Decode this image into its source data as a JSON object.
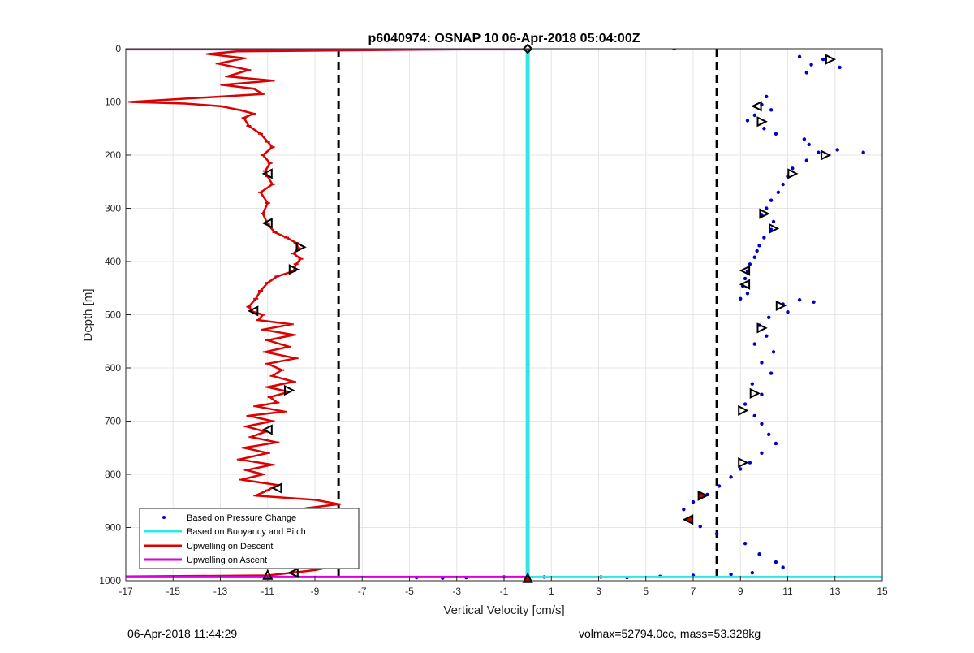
{
  "footer": {
    "timestamp": "06-Apr-2018 11:44:29",
    "summary": "volmax=52794.0cc, mass=53.328kg"
  },
  "chart_data": {
    "type": "scatter",
    "title": "p6040974: OSNAP 10 06-Apr-2018 05:04:00Z",
    "xlabel": "Vertical Velocity [cm/s]",
    "ylabel": "Depth [m]",
    "xlim": [
      -17,
      15
    ],
    "ylim": [
      0,
      1000
    ],
    "y_reversed": true,
    "grid": true,
    "xticks": [
      -17,
      -15,
      -13,
      -11,
      -9,
      -7,
      -5,
      -3,
      -1,
      1,
      3,
      5,
      7,
      9,
      11,
      13,
      15
    ],
    "yticks": [
      0,
      100,
      200,
      300,
      400,
      500,
      600,
      700,
      800,
      900,
      1000
    ],
    "legend": {
      "placement": "bottom-left",
      "entries": [
        "Based on Pressure Change",
        "Based on Buoyancy and Pitch",
        "Upwelling on Descent",
        "Upwelling on Ascent"
      ]
    },
    "reference_lines_x": [
      -8,
      8
    ],
    "colors": {
      "pressure": "#0000cc",
      "buoyancy": "#33e6e6",
      "descent": "#dd0000",
      "ascent": "#dd00dd",
      "reference": "#000000"
    },
    "series": [
      {
        "key": "pressure",
        "kind": "scatter",
        "points": [
          [
            6.2,
            0
          ],
          [
            12.5,
            20
          ],
          [
            13.2,
            35
          ],
          [
            11.8,
            45
          ],
          [
            12.0,
            30
          ],
          [
            11.5,
            15
          ],
          [
            10.1,
            90
          ],
          [
            9.9,
            105
          ],
          [
            10.3,
            115
          ],
          [
            9.6,
            125
          ],
          [
            9.3,
            135
          ],
          [
            10.0,
            150
          ],
          [
            10.5,
            160
          ],
          [
            11.7,
            170
          ],
          [
            11.9,
            180
          ],
          [
            12.3,
            195
          ],
          [
            13.1,
            190
          ],
          [
            14.2,
            195
          ],
          [
            11.8,
            210
          ],
          [
            11.2,
            225
          ],
          [
            11.0,
            240
          ],
          [
            10.8,
            255
          ],
          [
            10.6,
            270
          ],
          [
            10.3,
            285
          ],
          [
            10.1,
            300
          ],
          [
            9.9,
            312
          ],
          [
            10.4,
            325
          ],
          [
            10.3,
            340
          ],
          [
            10.0,
            355
          ],
          [
            9.8,
            370
          ],
          [
            9.7,
            380
          ],
          [
            9.6,
            392
          ],
          [
            9.4,
            405
          ],
          [
            9.3,
            418
          ],
          [
            9.2,
            432
          ],
          [
            9.1,
            446
          ],
          [
            9.3,
            460
          ],
          [
            9.0,
            470
          ],
          [
            10.8,
            480
          ],
          [
            11.5,
            472
          ],
          [
            12.1,
            476
          ],
          [
            11.0,
            495
          ],
          [
            10.2,
            505
          ],
          [
            9.8,
            520
          ],
          [
            10.1,
            540
          ],
          [
            9.6,
            555
          ],
          [
            10.4,
            570
          ],
          [
            9.9,
            590
          ],
          [
            10.3,
            610
          ],
          [
            9.5,
            630
          ],
          [
            9.9,
            650
          ],
          [
            9.2,
            668
          ],
          [
            9.6,
            690
          ],
          [
            9.9,
            705
          ],
          [
            10.2,
            725
          ],
          [
            10.5,
            742
          ],
          [
            9.9,
            760
          ],
          [
            9.4,
            778
          ],
          [
            9.0,
            790
          ],
          [
            8.6,
            805
          ],
          [
            8.1,
            822
          ],
          [
            7.6,
            838
          ],
          [
            7.0,
            852
          ],
          [
            6.6,
            866
          ],
          [
            6.8,
            884
          ],
          [
            7.3,
            898
          ],
          [
            8.0,
            912
          ],
          [
            9.2,
            930
          ],
          [
            9.8,
            950
          ],
          [
            10.5,
            965
          ],
          [
            10.8,
            975
          ],
          [
            9.5,
            985
          ],
          [
            8.6,
            988
          ],
          [
            7.0,
            990
          ],
          [
            5.6,
            992
          ],
          [
            4.2,
            994
          ],
          [
            3.1,
            993
          ],
          [
            0.7,
            993
          ],
          [
            -1.0,
            993
          ],
          [
            -2.6,
            994
          ],
          [
            -3.6,
            995
          ],
          [
            -4.7,
            994
          ]
        ]
      },
      {
        "key": "buoyancy",
        "kind": "vertical",
        "x": 0,
        "depth_range": [
          0,
          992
        ],
        "bottom_line": {
          "y": 993,
          "x_range": [
            0,
            15
          ]
        }
      },
      {
        "key": "descent",
        "kind": "line",
        "points": [
          [
            0,
            0
          ],
          [
            -12.3,
            5
          ],
          [
            -13.5,
            10
          ],
          [
            -12.0,
            18
          ],
          [
            -13.1,
            28
          ],
          [
            -11.8,
            40
          ],
          [
            -12.7,
            52
          ],
          [
            -10.8,
            60
          ],
          [
            -12.9,
            68
          ],
          [
            -11.6,
            75
          ],
          [
            -11.2,
            85
          ],
          [
            -13.8,
            92
          ],
          [
            -16.8,
            100
          ],
          [
            -14.5,
            103
          ],
          [
            -13.0,
            108
          ],
          [
            -12.2,
            115
          ],
          [
            -11.6,
            122
          ],
          [
            -12.0,
            130
          ],
          [
            -11.8,
            145
          ],
          [
            -11.3,
            160
          ],
          [
            -11.0,
            175
          ],
          [
            -10.8,
            185
          ],
          [
            -11.2,
            200
          ],
          [
            -10.9,
            215
          ],
          [
            -11.1,
            230
          ],
          [
            -11.0,
            240
          ],
          [
            -10.8,
            255
          ],
          [
            -11.3,
            270
          ],
          [
            -11.0,
            290
          ],
          [
            -11.2,
            310
          ],
          [
            -11.0,
            330
          ],
          [
            -10.7,
            345
          ],
          [
            -10.2,
            355
          ],
          [
            -9.8,
            365
          ],
          [
            -9.7,
            375
          ],
          [
            -9.9,
            385
          ],
          [
            -9.6,
            395
          ],
          [
            -9.8,
            405
          ],
          [
            -9.9,
            418
          ],
          [
            -10.6,
            428
          ],
          [
            -11.0,
            440
          ],
          [
            -11.3,
            455
          ],
          [
            -11.5,
            470
          ],
          [
            -11.8,
            485
          ],
          [
            -11.6,
            495
          ],
          [
            -11.2,
            500
          ],
          [
            -11.4,
            510
          ],
          [
            -10.0,
            518
          ],
          [
            -11.2,
            528
          ],
          [
            -9.9,
            538
          ],
          [
            -11.0,
            548
          ],
          [
            -10.1,
            560
          ],
          [
            -11.1,
            570
          ],
          [
            -9.8,
            582
          ],
          [
            -11.0,
            592
          ],
          [
            -10.4,
            604
          ],
          [
            -10.8,
            615
          ],
          [
            -9.9,
            626
          ],
          [
            -11.0,
            636
          ],
          [
            -10.1,
            645
          ],
          [
            -10.9,
            655
          ],
          [
            -10.6,
            665
          ],
          [
            -11.5,
            672
          ],
          [
            -10.3,
            682
          ],
          [
            -11.8,
            690
          ],
          [
            -10.8,
            700
          ],
          [
            -11.9,
            710
          ],
          [
            -11.1,
            720
          ],
          [
            -11.7,
            730
          ],
          [
            -10.6,
            740
          ],
          [
            -12.0,
            750
          ],
          [
            -11.0,
            760
          ],
          [
            -12.2,
            772
          ],
          [
            -10.8,
            782
          ],
          [
            -11.9,
            792
          ],
          [
            -11.2,
            800
          ],
          [
            -12.1,
            810
          ],
          [
            -10.6,
            820
          ],
          [
            -11.0,
            830
          ],
          [
            -11.5,
            840
          ],
          [
            -9.0,
            848
          ],
          [
            -8.0,
            856
          ],
          [
            -9.4,
            864
          ],
          [
            -7.6,
            874
          ],
          [
            -9.1,
            884
          ],
          [
            -7.8,
            894
          ],
          [
            -8.6,
            904
          ],
          [
            -9.4,
            912
          ],
          [
            -7.8,
            920
          ],
          [
            -8.8,
            930
          ],
          [
            -9.4,
            940
          ],
          [
            -7.9,
            950
          ],
          [
            -9.2,
            960
          ],
          [
            -8.1,
            972
          ],
          [
            -9.0,
            980
          ],
          [
            -10.0,
            985
          ],
          [
            -11.0,
            990
          ],
          [
            -17.0,
            992
          ]
        ]
      },
      {
        "key": "ascent",
        "kind": "line",
        "points": [
          [
            -17,
            993
          ],
          [
            0,
            993
          ],
          [
            -17,
            993
          ]
        ],
        "top_line": {
          "y": 1,
          "x_range": [
            -17,
            0
          ]
        }
      }
    ],
    "markers": [
      {
        "x": 12.8,
        "y": 20,
        "dir": "right"
      },
      {
        "x": 9.7,
        "y": 108,
        "dir": "left"
      },
      {
        "x": 9.9,
        "y": 137,
        "dir": "right"
      },
      {
        "x": 12.6,
        "y": 200,
        "dir": "right"
      },
      {
        "x": 11.2,
        "y": 235,
        "dir": "right"
      },
      {
        "x": 10.0,
        "y": 310,
        "dir": "right"
      },
      {
        "x": 10.4,
        "y": 338,
        "dir": "right"
      },
      {
        "x": 9.2,
        "y": 417,
        "dir": "left"
      },
      {
        "x": 9.2,
        "y": 443,
        "dir": "left"
      },
      {
        "x": 10.7,
        "y": 483,
        "dir": "right"
      },
      {
        "x": 9.9,
        "y": 525,
        "dir": "right"
      },
      {
        "x": 9.6,
        "y": 648,
        "dir": "right"
      },
      {
        "x": 9.1,
        "y": 680,
        "dir": "right"
      },
      {
        "x": 9.1,
        "y": 778,
        "dir": "right"
      },
      {
        "x": 7.4,
        "y": 840,
        "dir": "right",
        "filled": true
      },
      {
        "x": 6.8,
        "y": 885,
        "dir": "left",
        "filled": true
      },
      {
        "x": -11.0,
        "y": 235,
        "dir": "left"
      },
      {
        "x": -11.0,
        "y": 328,
        "dir": "left"
      },
      {
        "x": -9.6,
        "y": 373,
        "dir": "right"
      },
      {
        "x": -9.9,
        "y": 415,
        "dir": "right"
      },
      {
        "x": -11.6,
        "y": 493,
        "dir": "left"
      },
      {
        "x": -10.1,
        "y": 642,
        "dir": "right"
      },
      {
        "x": -11.0,
        "y": 716,
        "dir": "left"
      },
      {
        "x": -10.6,
        "y": 826,
        "dir": "left"
      },
      {
        "x": -8.9,
        "y": 892,
        "dir": "right"
      },
      {
        "x": -11.0,
        "y": 989,
        "dir": "up"
      },
      {
        "x": -9.9,
        "y": 985,
        "dir": "left"
      },
      {
        "x": 0,
        "y": 0,
        "dir": "diamond"
      },
      {
        "x": 0,
        "y": 995,
        "dir": "up",
        "filled": true
      }
    ]
  }
}
